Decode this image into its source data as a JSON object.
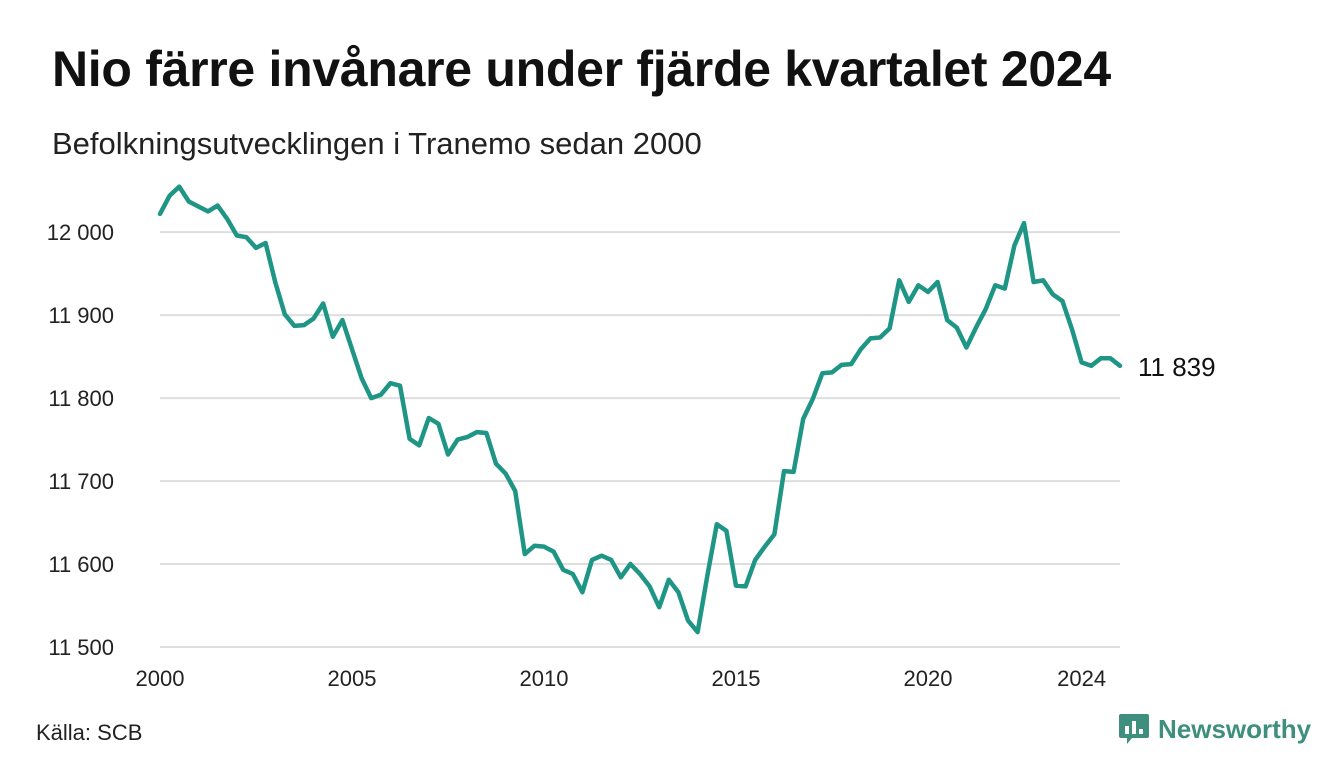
{
  "header": {
    "title": "Nio färre invånare under fjärde kvartalet 2024",
    "subtitle": "Befolkningsutvecklingen i Tranemo sedan 2000"
  },
  "footer": {
    "source": "Källa: SCB",
    "brand": "Newsworthy",
    "brand_color": "#3e8f7d"
  },
  "chart_data": {
    "type": "line",
    "title": "Nio färre invånare under fjärde kvartalet 2024",
    "subtitle": "Befolkningsutvecklingen i Tranemo sedan 2000",
    "xlabel": "",
    "ylabel": "",
    "xlim": [
      2000,
      2025
    ],
    "ylim": [
      11500,
      12040
    ],
    "x_ticks": [
      2000,
      2005,
      2010,
      2015,
      2020,
      2024
    ],
    "x_tick_labels": [
      "2000",
      "2005",
      "2010",
      "2015",
      "2020",
      "2024"
    ],
    "y_ticks": [
      11500,
      11600,
      11700,
      11800,
      11900,
      12000
    ],
    "y_tick_labels": [
      "11 500",
      "11 600",
      "11 700",
      "11 800",
      "11 900",
      "12 000"
    ],
    "grid": "horizontal",
    "line_color": "#1e9585",
    "end_label": "11 839",
    "series": [
      {
        "name": "",
        "x": [
          2000.0,
          2000.25,
          2000.5,
          2000.75,
          2001.0,
          2001.25,
          2001.5,
          2001.75,
          2002.0,
          2002.25,
          2002.5,
          2002.75,
          2003.0,
          2003.25,
          2003.5,
          2003.75,
          2004.0,
          2004.25,
          2004.5,
          2004.75,
          2005.0,
          2005.25,
          2005.5,
          2005.75,
          2006.0,
          2006.25,
          2006.5,
          2006.75,
          2007.0,
          2007.25,
          2007.5,
          2007.75,
          2008.0,
          2008.25,
          2008.5,
          2008.75,
          2009.0,
          2009.25,
          2009.5,
          2009.75,
          2010.0,
          2010.25,
          2010.5,
          2010.75,
          2011.0,
          2011.25,
          2011.5,
          2011.75,
          2012.0,
          2012.25,
          2012.5,
          2012.75,
          2013.0,
          2013.25,
          2013.5,
          2013.75,
          2014.0,
          2014.25,
          2014.5,
          2014.75,
          2015.0,
          2015.25,
          2015.5,
          2015.75,
          2016.0,
          2016.25,
          2016.5,
          2016.75,
          2017.0,
          2017.25,
          2017.5,
          2017.75,
          2018.0,
          2018.25,
          2018.5,
          2018.75,
          2019.0,
          2019.25,
          2019.5,
          2019.75,
          2020.0,
          2020.25,
          2020.5,
          2020.75,
          2021.0,
          2021.25,
          2021.5,
          2021.75,
          2022.0,
          2022.25,
          2022.5,
          2022.75,
          2023.0,
          2023.25,
          2023.5,
          2023.75,
          2024.0,
          2024.25,
          2024.5,
          2024.75,
          2025.0
        ],
        "y": [
          12022,
          12044,
          12055,
          12037,
          12031,
          12025,
          12032,
          12016,
          11996,
          11994,
          11981,
          11987,
          11940,
          11901,
          11887,
          11888,
          11896,
          11914,
          11874,
          11894,
          11859,
          11824,
          11800,
          11804,
          11818,
          11815,
          11751,
          11743,
          11776,
          11769,
          11732,
          11750,
          11753,
          11759,
          11758,
          11721,
          11709,
          11688,
          11612,
          11622,
          11621,
          11615,
          11593,
          11588,
          11566,
          11605,
          11610,
          11605,
          11584,
          11600,
          11588,
          11573,
          11548,
          11581,
          11566,
          11532,
          11518,
          11585,
          11648,
          11640,
          11574,
          11573,
          11605,
          11621,
          11636,
          11712,
          11711,
          11775,
          11799,
          11830,
          11831,
          11840,
          11841,
          11859,
          11872,
          11873,
          11884,
          11942,
          11916,
          11936,
          11928,
          11940,
          11894,
          11885,
          11861,
          11885,
          11907,
          11936,
          11932,
          11984,
          12011,
          11940,
          11942,
          11925,
          11917,
          11883,
          11843,
          11839,
          11848,
          11848,
          11839
        ]
      }
    ]
  }
}
